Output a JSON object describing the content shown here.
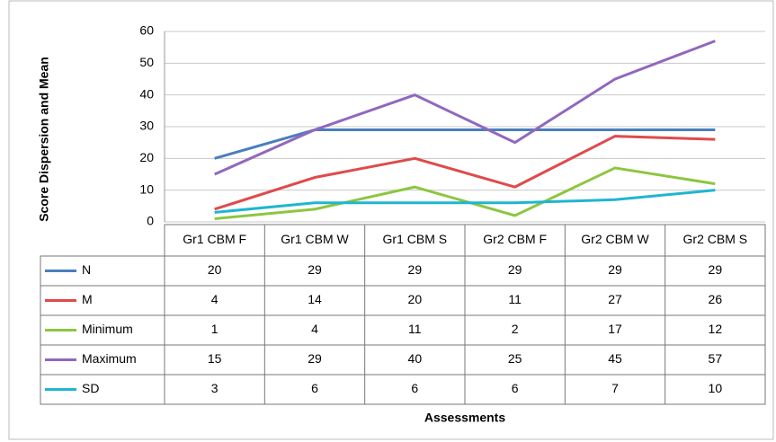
{
  "chart_data": {
    "type": "line",
    "y_label": "Score Dispersion and Mean",
    "x_label": "Assessments",
    "categories": [
      "Gr1 CBM F",
      "Gr1 CBM W",
      "Gr1 CBM S",
      "Gr2 CBM F",
      "Gr2 CBM W",
      "Gr2 CBM S"
    ],
    "series": [
      {
        "name": "N",
        "color": "#4a7ebb",
        "values": [
          20,
          29,
          29,
          29,
          29,
          29
        ]
      },
      {
        "name": "M",
        "color": "#e04a4a",
        "values": [
          4,
          14,
          20,
          11,
          27,
          26
        ]
      },
      {
        "name": "Minimum",
        "color": "#8cc63f",
        "values": [
          1,
          4,
          11,
          2,
          17,
          12
        ]
      },
      {
        "name": "Maximum",
        "color": "#9068be",
        "values": [
          15,
          29,
          40,
          25,
          45,
          57
        ]
      },
      {
        "name": "SD",
        "color": "#1fb5d0",
        "values": [
          3,
          6,
          6,
          6,
          7,
          10
        ]
      }
    ],
    "ylim": [
      0,
      60
    ],
    "yticks": [
      0,
      10,
      20,
      30,
      40,
      50,
      60
    ],
    "grid": true
  }
}
